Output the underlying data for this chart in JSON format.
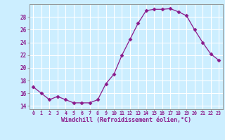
{
  "x": [
    0,
    1,
    2,
    3,
    4,
    5,
    6,
    7,
    8,
    9,
    10,
    11,
    12,
    13,
    14,
    15,
    16,
    17,
    18,
    19,
    20,
    21,
    22,
    23
  ],
  "y": [
    17.0,
    16.0,
    15.0,
    15.5,
    15.0,
    14.5,
    14.5,
    14.5,
    15.0,
    17.5,
    19.0,
    22.0,
    24.5,
    27.0,
    29.0,
    29.2,
    29.2,
    29.3,
    28.8,
    28.2,
    26.0,
    24.0,
    22.2,
    21.2
  ],
  "line_color": "#8b1a8b",
  "marker": "D",
  "marker_size": 2.5,
  "bg_color": "#cceeff",
  "grid_color": "#ffffff",
  "xlabel": "Windchill (Refroidissement éolien,°C)",
  "ylim": [
    13.5,
    30.0
  ],
  "xlim": [
    -0.5,
    23.5
  ],
  "yticks": [
    14,
    16,
    18,
    20,
    22,
    24,
    26,
    28
  ],
  "xticks": [
    0,
    1,
    2,
    3,
    4,
    5,
    6,
    7,
    8,
    9,
    10,
    11,
    12,
    13,
    14,
    15,
    16,
    17,
    18,
    19,
    20,
    21,
    22,
    23
  ],
  "tick_color": "#8b1a8b",
  "label_color": "#8b1a8b",
  "spine_color": "#888888"
}
